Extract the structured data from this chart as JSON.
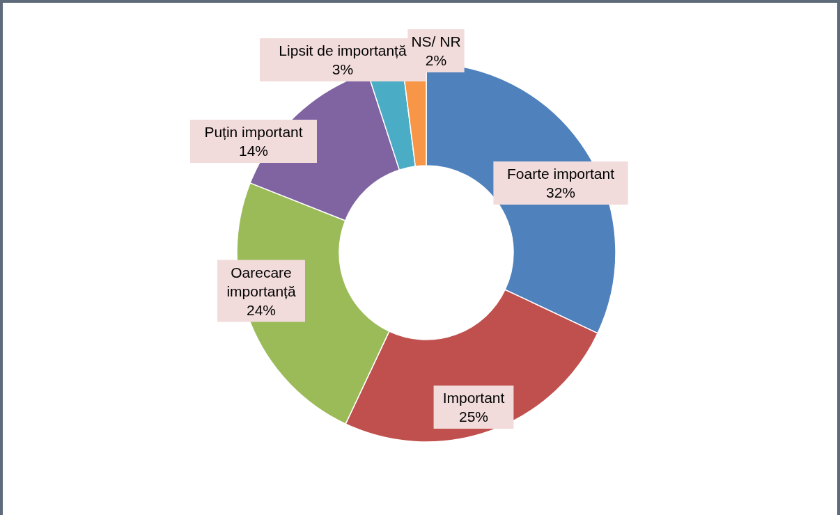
{
  "chart_data": {
    "type": "donut",
    "categories": [
      "Foarte important",
      "Important",
      "Oarecare importanță",
      "Puțin important",
      "Lipsit de importanță",
      "NS/ NR"
    ],
    "values": [
      32,
      25,
      24,
      14,
      3,
      2
    ],
    "value_labels": [
      "32%",
      "25%",
      "24%",
      "14%",
      "3%",
      "2%"
    ],
    "colors": [
      "#4f81bd",
      "#c0504d",
      "#9bbb59",
      "#8064a2",
      "#4bacc6",
      "#f79646"
    ]
  }
}
